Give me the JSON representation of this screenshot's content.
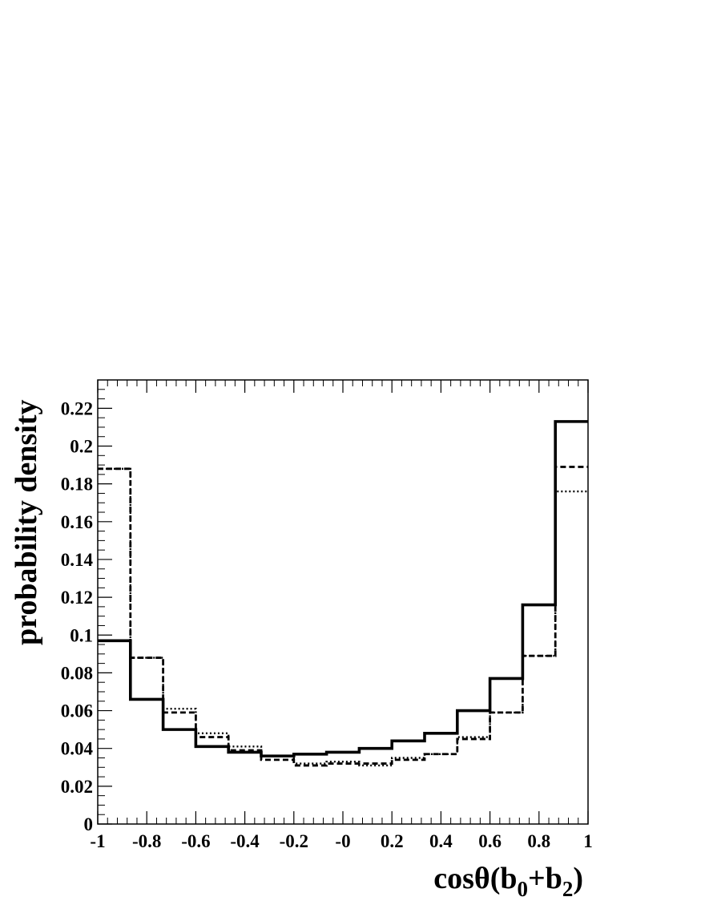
{
  "chart_data": {
    "type": "histogram",
    "xlabel": "cosθ(b0+b2)",
    "xlabel_parts": {
      "main": "cos",
      "theta": "θ",
      "open": "(b",
      "sub1": "0",
      "plus": "+b",
      "sub2": "2",
      "close": ")"
    },
    "ylabel": "probability density",
    "xlim": [
      -1,
      1
    ],
    "ylim": [
      0,
      0.235
    ],
    "grid": false,
    "x_ticks": [
      -1,
      -0.8,
      -0.6,
      -0.4,
      -0.2,
      0,
      0.2,
      0.4,
      0.6,
      0.8,
      1
    ],
    "x_tick_labels": [
      "-1",
      "-0.8",
      "-0.6",
      "-0.4",
      "-0.2",
      "-0",
      "0.2",
      "0.4",
      "0.6",
      "0.8",
      "1"
    ],
    "y_ticks": [
      0,
      0.02,
      0.04,
      0.06,
      0.08,
      0.1,
      0.12,
      0.14,
      0.16,
      0.18,
      0.2,
      0.22
    ],
    "y_tick_labels": [
      "0",
      "0.02",
      "0.04",
      "0.06",
      "0.08",
      "0.1",
      "0.12",
      "0.14",
      "0.16",
      "0.18",
      "0.2",
      "0.22"
    ],
    "bin_edges": [
      -1,
      -0.8667,
      -0.7333,
      -0.6,
      -0.4667,
      -0.3333,
      -0.2,
      -0.0667,
      0.0667,
      0.2,
      0.3333,
      0.4667,
      0.6,
      0.7333,
      0.8667,
      1
    ],
    "series": [
      {
        "style": "solid",
        "values": [
          0.097,
          0.066,
          0.05,
          0.041,
          0.038,
          0.036,
          0.037,
          0.038,
          0.04,
          0.044,
          0.048,
          0.06,
          0.077,
          0.116,
          0.213
        ]
      },
      {
        "style": "dashed",
        "values": [
          0.188,
          0.088,
          0.059,
          0.046,
          0.039,
          0.034,
          0.031,
          0.032,
          0.032,
          0.034,
          0.037,
          0.045,
          0.059,
          0.089,
          0.189
        ]
      },
      {
        "style": "dotted",
        "values": [
          0.188,
          0.088,
          0.061,
          0.048,
          0.041,
          0.036,
          0.032,
          0.033,
          0.031,
          0.035,
          0.037,
          0.046,
          0.059,
          0.089,
          0.176
        ]
      }
    ]
  }
}
